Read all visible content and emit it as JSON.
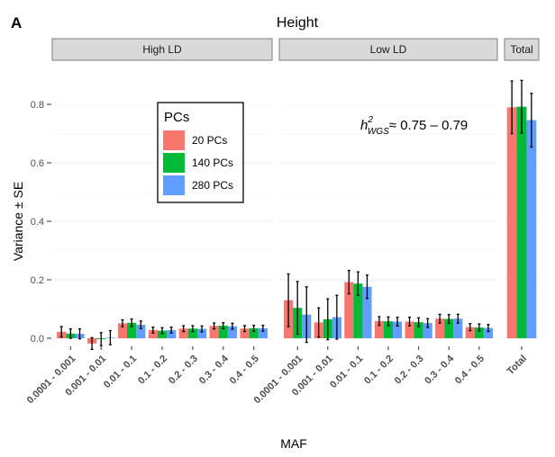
{
  "panel_label": "A",
  "chart_data": {
    "type": "bar",
    "title": "Height",
    "xlabel": "MAF",
    "ylabel": "Variance ± SE",
    "ylim": [
      -0.03,
      0.9
    ],
    "yticks": [
      0.0,
      0.2,
      0.4,
      0.6,
      0.8
    ],
    "ytick_labels": [
      "0.0",
      "0.2",
      "0.4",
      "0.6",
      "0.8"
    ],
    "legend": {
      "title": "PCs",
      "position": "top-left",
      "entries": [
        "20 PCs",
        "140 PCs",
        "280 PCs"
      ]
    },
    "colors": {
      "20 PCs": "#F8766D",
      "140 PCs": "#00BA38",
      "280 PCs": "#619CFF"
    },
    "annotation": {
      "h_symbol": "h",
      "superscript": "2",
      "subscript": "WGS",
      "relation": "≈",
      "range": "0.75 – 0.79"
    },
    "facets": [
      {
        "name": "High LD",
        "categories": [
          "0.0001 - 0.001",
          "0.001 - 0.01",
          "0.01 - 0.1",
          "0.1 - 0.2",
          "0.2 - 0.3",
          "0.3 - 0.4",
          "0.4 - 0.5"
        ],
        "series": [
          {
            "name": "20 PCs",
            "values": [
              0.022,
              -0.018,
              0.051,
              0.028,
              0.033,
              0.042,
              0.033
            ],
            "se": [
              0.018,
              0.02,
              0.012,
              0.01,
              0.01,
              0.01,
              0.01
            ]
          },
          {
            "name": "140 PCs",
            "values": [
              0.016,
              -0.003,
              0.053,
              0.026,
              0.033,
              0.043,
              0.034
            ],
            "se": [
              0.016,
              0.022,
              0.013,
              0.01,
              0.01,
              0.01,
              0.01
            ]
          },
          {
            "name": "280 PCs",
            "values": [
              0.015,
              0.002,
              0.046,
              0.028,
              0.032,
              0.041,
              0.034
            ],
            "se": [
              0.017,
              0.024,
              0.013,
              0.01,
              0.01,
              0.01,
              0.01
            ]
          }
        ]
      },
      {
        "name": "Low LD",
        "categories": [
          "0.0001 - 0.001",
          "0.001 - 0.01",
          "0.01 - 0.1",
          "0.1 - 0.2",
          "0.2 - 0.3",
          "0.3 - 0.4",
          "0.4 - 0.5"
        ],
        "series": [
          {
            "name": "20 PCs",
            "values": [
              0.13,
              0.054,
              0.192,
              0.059,
              0.057,
              0.067,
              0.038
            ],
            "se": [
              0.09,
              0.05,
              0.04,
              0.015,
              0.015,
              0.015,
              0.012
            ]
          },
          {
            "name": "140 PCs",
            "values": [
              0.104,
              0.065,
              0.187,
              0.058,
              0.055,
              0.066,
              0.037
            ],
            "se": [
              0.09,
              0.07,
              0.04,
              0.015,
              0.015,
              0.015,
              0.012
            ]
          },
          {
            "name": "280 PCs",
            "values": [
              0.081,
              0.072,
              0.176,
              0.057,
              0.052,
              0.067,
              0.035
            ],
            "se": [
              0.095,
              0.075,
              0.04,
              0.015,
              0.015,
              0.015,
              0.012
            ]
          }
        ]
      },
      {
        "name": "Total",
        "categories": [
          "Total"
        ],
        "series": [
          {
            "name": "20 PCs",
            "values": [
              0.79
            ],
            "se": [
              0.09
            ]
          },
          {
            "name": "140 PCs",
            "values": [
              0.792
            ],
            "se": [
              0.09
            ]
          },
          {
            "name": "280 PCs",
            "values": [
              0.746
            ],
            "se": [
              0.092
            ]
          }
        ]
      }
    ]
  }
}
